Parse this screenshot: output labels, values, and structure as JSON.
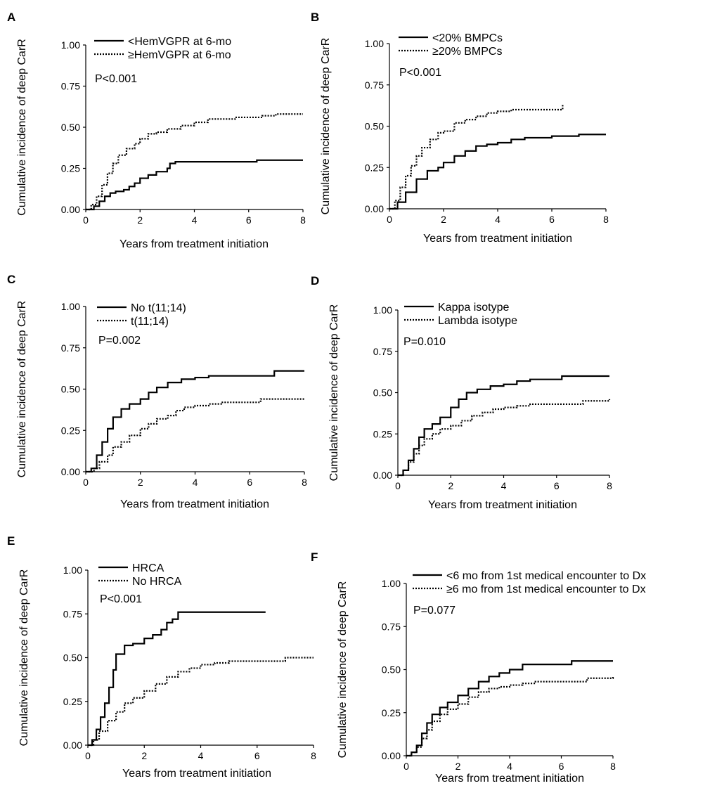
{
  "chart_data": [
    {
      "panel": "A",
      "type": "line",
      "xlabel": "Years from treatment initiation",
      "ylabel": "Cumulative incidence of deep CarR",
      "xlim": [
        0,
        8
      ],
      "ylim": [
        0,
        1
      ],
      "xticks": [
        "0",
        "2",
        "4",
        "6",
        "8"
      ],
      "yticks": [
        "0.00",
        "0.25",
        "0.50",
        "0.75",
        "1.00"
      ],
      "pvalue": "P<0.001",
      "legend_position": "top-left",
      "grid": false,
      "series": [
        {
          "name": "<HemVGPR at 6-mo",
          "style": "solid",
          "x": [
            0,
            0.3,
            0.5,
            0.7,
            0.9,
            1.1,
            1.4,
            1.6,
            1.8,
            2.0,
            2.3,
            2.6,
            3.0,
            3.1,
            3.3,
            5.0,
            5.5,
            6.0,
            6.3,
            7.0,
            8.0
          ],
          "y": [
            0,
            0.02,
            0.05,
            0.08,
            0.1,
            0.11,
            0.12,
            0.14,
            0.16,
            0.19,
            0.21,
            0.23,
            0.25,
            0.28,
            0.29,
            0.29,
            0.29,
            0.29,
            0.3,
            0.3,
            0.3
          ]
        },
        {
          "name": "≥HemVGPR at 6-mo",
          "style": "dotted",
          "x": [
            0,
            0.2,
            0.4,
            0.6,
            0.8,
            1.0,
            1.2,
            1.5,
            1.8,
            2.0,
            2.3,
            2.6,
            3.0,
            3.5,
            4.0,
            4.5,
            5.0,
            5.5,
            6.0,
            6.5,
            7.0,
            8.0
          ],
          "y": [
            0,
            0.03,
            0.08,
            0.15,
            0.22,
            0.28,
            0.33,
            0.37,
            0.4,
            0.43,
            0.46,
            0.47,
            0.49,
            0.51,
            0.53,
            0.55,
            0.55,
            0.56,
            0.56,
            0.57,
            0.58,
            0.58
          ]
        }
      ]
    },
    {
      "panel": "B",
      "type": "line",
      "xlabel": "Years from treatment initiation",
      "ylabel": "Cumulative incidence of deep CarR",
      "xlim": [
        0,
        8
      ],
      "ylim": [
        0,
        1
      ],
      "xticks": [
        "0",
        "2",
        "4",
        "6",
        "8"
      ],
      "yticks": [
        "0.00",
        "0.25",
        "0.50",
        "0.75",
        "1.00"
      ],
      "pvalue": "P<0.001",
      "legend_position": "top-left",
      "grid": false,
      "series": [
        {
          "name": "<20% BMPCs",
          "style": "solid",
          "x": [
            0,
            0.3,
            0.6,
            1.0,
            1.4,
            1.8,
            2.0,
            2.4,
            2.8,
            3.2,
            3.6,
            4.0,
            4.5,
            5.0,
            6.0,
            7.0,
            8.0
          ],
          "y": [
            0,
            0.04,
            0.1,
            0.18,
            0.23,
            0.25,
            0.28,
            0.32,
            0.35,
            0.38,
            0.39,
            0.4,
            0.42,
            0.43,
            0.44,
            0.45,
            0.45
          ]
        },
        {
          "name": "≥20% BMPCs",
          "style": "dotted",
          "x": [
            0,
            0.2,
            0.4,
            0.6,
            0.8,
            1.0,
            1.2,
            1.5,
            1.8,
            2.0,
            2.4,
            2.8,
            3.2,
            3.6,
            4.0,
            4.5,
            5.0,
            6.0,
            6.4
          ],
          "y": [
            0,
            0.05,
            0.13,
            0.2,
            0.26,
            0.32,
            0.37,
            0.42,
            0.46,
            0.47,
            0.52,
            0.54,
            0.56,
            0.58,
            0.59,
            0.6,
            0.6,
            0.6,
            0.63
          ]
        }
      ]
    },
    {
      "panel": "C",
      "type": "line",
      "xlabel": "Years from treatment initiation",
      "ylabel": "Cumulative incidence of deep CarR",
      "xlim": [
        0,
        8
      ],
      "ylim": [
        0,
        1
      ],
      "xticks": [
        "0",
        "2",
        "4",
        "6",
        "8"
      ],
      "yticks": [
        "0.00",
        "0.25",
        "0.50",
        "0.75",
        "1.00"
      ],
      "pvalue": "P=0.002",
      "legend_position": "top-left",
      "grid": false,
      "series": [
        {
          "name": "No t(11;14)",
          "style": "solid",
          "x": [
            0,
            0.2,
            0.4,
            0.6,
            0.8,
            1.0,
            1.3,
            1.6,
            2.0,
            2.3,
            2.6,
            3.0,
            3.5,
            4.0,
            4.5,
            5.0,
            6.0,
            6.9,
            8.0
          ],
          "y": [
            0,
            0.02,
            0.1,
            0.18,
            0.26,
            0.33,
            0.38,
            0.41,
            0.44,
            0.48,
            0.51,
            0.54,
            0.56,
            0.57,
            0.58,
            0.58,
            0.58,
            0.61,
            0.61
          ]
        },
        {
          "name": "t(11;14)",
          "style": "dotted",
          "x": [
            0,
            0.3,
            0.5,
            0.8,
            1.0,
            1.3,
            1.6,
            2.0,
            2.3,
            2.6,
            3.0,
            3.3,
            3.6,
            4.0,
            4.5,
            5.0,
            6.0,
            6.4,
            8.0
          ],
          "y": [
            0,
            0.02,
            0.06,
            0.1,
            0.15,
            0.18,
            0.22,
            0.26,
            0.29,
            0.32,
            0.34,
            0.37,
            0.39,
            0.4,
            0.41,
            0.42,
            0.42,
            0.44,
            0.44
          ]
        }
      ]
    },
    {
      "panel": "D",
      "type": "line",
      "xlabel": "Years from treatment initiation",
      "ylabel": "Cumulative incidence of deep CarR",
      "xlim": [
        0,
        8
      ],
      "ylim": [
        0,
        1
      ],
      "xticks": [
        "0",
        "2",
        "4",
        "6",
        "8"
      ],
      "yticks": [
        "0.00",
        "0.25",
        "0.50",
        "0.75",
        "1.00"
      ],
      "pvalue": "P=0.010",
      "legend_position": "top-left",
      "grid": false,
      "series": [
        {
          "name": "Kappa isotype",
          "style": "solid",
          "x": [
            0,
            0.2,
            0.4,
            0.6,
            0.8,
            1.0,
            1.3,
            1.6,
            2.0,
            2.3,
            2.6,
            3.0,
            3.5,
            4.0,
            4.5,
            5.0,
            6.0,
            6.2,
            8.0
          ],
          "y": [
            0,
            0.03,
            0.09,
            0.16,
            0.23,
            0.28,
            0.31,
            0.35,
            0.41,
            0.46,
            0.5,
            0.52,
            0.54,
            0.55,
            0.57,
            0.58,
            0.58,
            0.6,
            0.6
          ]
        },
        {
          "name": "Lambda isotype",
          "style": "dotted",
          "x": [
            0,
            0.2,
            0.4,
            0.6,
            0.8,
            1.0,
            1.3,
            1.6,
            2.0,
            2.4,
            2.8,
            3.2,
            3.6,
            4.0,
            4.5,
            5.0,
            6.0,
            7.0,
            8.0
          ],
          "y": [
            0,
            0.03,
            0.08,
            0.13,
            0.18,
            0.22,
            0.25,
            0.28,
            0.3,
            0.33,
            0.36,
            0.38,
            0.4,
            0.41,
            0.42,
            0.43,
            0.43,
            0.45,
            0.46
          ]
        }
      ]
    },
    {
      "panel": "E",
      "type": "line",
      "xlabel": "Years from treatment initiation",
      "ylabel": "Cumulative incidence of deep CarR",
      "xlim": [
        0,
        8
      ],
      "ylim": [
        0,
        1
      ],
      "xticks": [
        "0",
        "2",
        "4",
        "6",
        "8"
      ],
      "yticks": [
        "0.00",
        "0.25",
        "0.50",
        "0.75",
        "1.00"
      ],
      "pvalue": "P<0.001",
      "legend_position": "top-left",
      "grid": false,
      "series": [
        {
          "name": "HRCA",
          "style": "solid",
          "x": [
            0,
            0.15,
            0.3,
            0.45,
            0.6,
            0.75,
            0.9,
            1.0,
            1.3,
            1.6,
            2.0,
            2.3,
            2.6,
            2.8,
            3.0,
            3.2,
            4.0,
            5.0,
            6.3
          ],
          "y": [
            0,
            0.03,
            0.09,
            0.16,
            0.24,
            0.33,
            0.43,
            0.52,
            0.57,
            0.58,
            0.61,
            0.63,
            0.66,
            0.7,
            0.72,
            0.76,
            0.76,
            0.76,
            0.76
          ]
        },
        {
          "name": "No HRCA",
          "style": "dotted",
          "x": [
            0,
            0.2,
            0.4,
            0.7,
            1.0,
            1.3,
            1.6,
            2.0,
            2.4,
            2.8,
            3.2,
            3.6,
            4.0,
            4.5,
            5.0,
            6.0,
            7.0,
            8.0
          ],
          "y": [
            0,
            0.03,
            0.08,
            0.14,
            0.19,
            0.24,
            0.27,
            0.31,
            0.35,
            0.39,
            0.42,
            0.44,
            0.46,
            0.47,
            0.48,
            0.48,
            0.5,
            0.5
          ]
        }
      ]
    },
    {
      "panel": "F",
      "type": "line",
      "xlabel": "Years from treatment initiation",
      "ylabel": "Cumulative incidence of deep CarR",
      "xlim": [
        0,
        8
      ],
      "ylim": [
        0,
        1
      ],
      "xticks": [
        "0",
        "2",
        "4",
        "6",
        "8"
      ],
      "yticks": [
        "0.00",
        "0.25",
        "0.50",
        "0.75",
        "1.00"
      ],
      "pvalue": "P=0.077",
      "legend_position": "top-left",
      "grid": false,
      "series": [
        {
          "name": "<6 mo from 1st medical encounter to Dx",
          "style": "solid",
          "x": [
            0,
            0.2,
            0.4,
            0.6,
            0.8,
            1.0,
            1.3,
            1.6,
            2.0,
            2.4,
            2.8,
            3.2,
            3.6,
            4.0,
            4.5,
            5.0,
            6.0,
            6.4,
            8.0
          ],
          "y": [
            0,
            0.02,
            0.06,
            0.13,
            0.19,
            0.24,
            0.28,
            0.31,
            0.35,
            0.39,
            0.43,
            0.46,
            0.48,
            0.5,
            0.53,
            0.53,
            0.53,
            0.55,
            0.55
          ]
        },
        {
          "name": "≥6 mo from 1st medical encounter to Dx",
          "style": "dotted",
          "x": [
            0,
            0.2,
            0.4,
            0.6,
            0.8,
            1.0,
            1.3,
            1.6,
            2.0,
            2.4,
            2.8,
            3.2,
            3.6,
            4.0,
            4.5,
            5.0,
            6.0,
            7.0,
            8.0
          ],
          "y": [
            0,
            0.02,
            0.05,
            0.1,
            0.15,
            0.2,
            0.24,
            0.27,
            0.3,
            0.34,
            0.37,
            0.39,
            0.4,
            0.41,
            0.42,
            0.43,
            0.43,
            0.45,
            0.46
          ]
        }
      ]
    }
  ]
}
